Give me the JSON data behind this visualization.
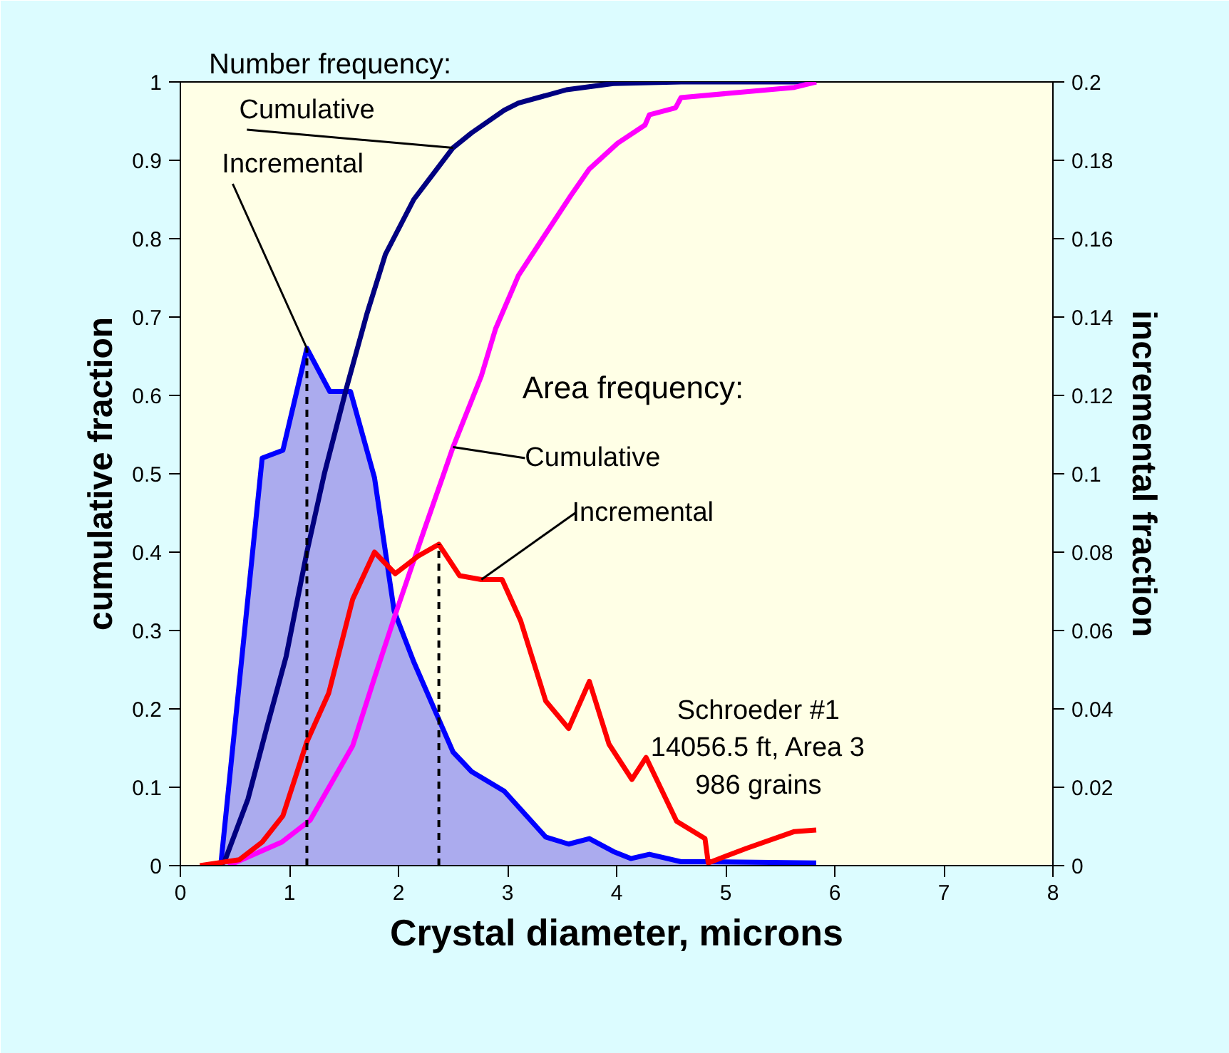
{
  "chart_data": {
    "type": "line",
    "title": "Number frequency:",
    "xlabel": "Crystal diameter, microns",
    "ylabel": "cumulative fraction",
    "y2label": "incremental fraction",
    "xlim": [
      0,
      8
    ],
    "xticks": [
      0,
      1,
      2,
      3,
      4,
      5,
      6,
      7,
      8
    ],
    "ylim": [
      0,
      1
    ],
    "yticks": [
      0,
      0.1,
      0.2,
      0.3,
      0.4,
      0.5,
      0.6,
      0.7,
      0.8,
      0.9,
      1
    ],
    "y2lim": [
      0,
      0.2
    ],
    "y2ticks": [
      0,
      0.02,
      0.04,
      0.06,
      0.08,
      0.1,
      0.12,
      0.14,
      0.16,
      0.18,
      0.2
    ],
    "grid": false,
    "legend": false,
    "series": [
      {
        "name": "Cumulative",
        "color": "#000080",
        "x": [
          0.37,
          0.41,
          0.62,
          0.8,
          0.97,
          1.16,
          1.32,
          1.53,
          1.71,
          1.88,
          2.14,
          2.5,
          2.67,
          2.97,
          3.1,
          3.54,
          3.97,
          4.59,
          5.83
        ],
        "values": [
          0,
          0.007,
          0.085,
          0.18,
          0.267,
          0.4,
          0.5,
          0.613,
          0.704,
          0.78,
          0.85,
          0.916,
          0.935,
          0.964,
          0.973,
          0.99,
          0.998,
          1,
          1
        ]
      },
      {
        "name": "Incremental",
        "type": "area",
        "axis": "y2",
        "color": "#0000ff",
        "x": [
          0.37,
          0.75,
          0.94,
          1.16,
          1.37,
          1.56,
          1.78,
          1.96,
          2.14,
          2.5,
          2.67,
          2.97,
          3.35,
          3.56,
          3.75,
          3.97,
          4.13,
          4.3,
          4.59,
          4.85,
          5.83
        ],
        "values": [
          0,
          0.104,
          0.106,
          0.132,
          0.121,
          0.121,
          0.099,
          0.065,
          0.052,
          0.029,
          0.024,
          0.019,
          0.0073,
          0.0055,
          0.0069,
          0.0036,
          0.0018,
          0.0029,
          0.001,
          0.001,
          0.0007
        ]
      },
      {
        "name": "Cumulative",
        "color": "#ff00ff",
        "x": [
          0.44,
          0.93,
          1.19,
          1.58,
          1.79,
          1.97,
          2.24,
          2.5,
          2.76,
          2.89,
          3.1,
          3.32,
          3.58,
          3.75,
          4.01,
          4.26,
          4.3,
          4.54,
          4.59,
          5.63,
          5.83
        ],
        "values": [
          0,
          0.03,
          0.058,
          0.153,
          0.244,
          0.32,
          0.43,
          0.534,
          0.625,
          0.685,
          0.753,
          0.8,
          0.855,
          0.889,
          0.922,
          0.945,
          0.958,
          0.967,
          0.98,
          0.993,
          1
        ]
      },
      {
        "name": "Incremental",
        "axis": "y2",
        "color": "#ff0000",
        "x": [
          0.18,
          0.54,
          0.75,
          0.94,
          1.16,
          1.36,
          1.58,
          1.78,
          1.97,
          2.18,
          2.37,
          2.56,
          2.76,
          2.95,
          3.12,
          3.35,
          3.56,
          3.75,
          3.93,
          4.14,
          4.27,
          4.55,
          4.81,
          4.84,
          5.19,
          5.63,
          5.83
        ],
        "values": [
          0,
          0.0015,
          0.006,
          0.0127,
          0.0316,
          0.044,
          0.068,
          0.08,
          0.0745,
          0.079,
          0.082,
          0.074,
          0.073,
          0.073,
          0.0625,
          0.042,
          0.035,
          0.047,
          0.031,
          0.022,
          0.0276,
          0.0113,
          0.0069,
          0.0007,
          0.0044,
          0.0087,
          0.0091
        ]
      }
    ],
    "ref_lines": [
      {
        "axis": "x",
        "value": 1.16,
        "color": "#000000",
        "line_style": "dashed"
      },
      {
        "axis": "x",
        "value": 2.37,
        "color": "#000000",
        "line_style": "dashed"
      }
    ],
    "annotations": [
      "Area frequency:",
      "Schroeder #1\n14056.5 ft, Area 3\n986 grains"
    ]
  }
}
